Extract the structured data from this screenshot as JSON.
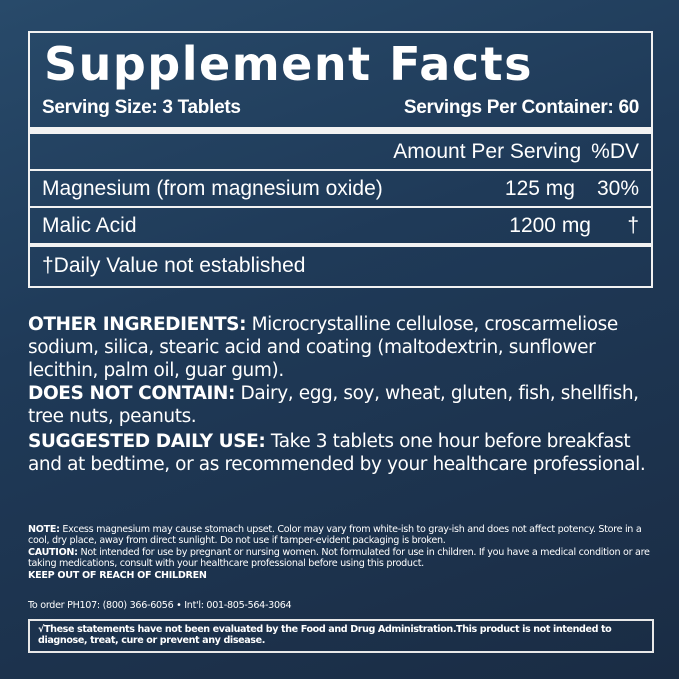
{
  "facts": {
    "title": "Supplement Facts",
    "serving_size": "Serving Size: 3 Tablets",
    "servings_per_container": "Servings Per Container: 60",
    "amount_header": "Amount Per Serving",
    "dv_header": "%DV",
    "rows": [
      {
        "name": "Magnesium (from magnesium oxide)",
        "amount": "125 mg",
        "dv": "30%"
      },
      {
        "name": "Malic Acid",
        "amount": "1200 mg",
        "dv": "†"
      }
    ],
    "footnote": "†Daily Value not established"
  },
  "other_ingredients": {
    "label": "OTHER INGREDIENTS:",
    "text": " Microcrystalline cellulose, croscarmeliose sodium, silica, stearic acid and coating (maltodextrin, sunflower lecithin, palm oil, guar gum)."
  },
  "does_not_contain": {
    "label": "DOES NOT CONTAIN:",
    "text": " Dairy, egg, soy, wheat, gluten, fish, shellfish, tree nuts, peanuts."
  },
  "suggested_use": {
    "label": "SUGGESTED DAILY USE:",
    "text": " Take 3 tablets one hour before breakfast and at bedtime, or as recommended by your healthcare professional."
  },
  "note": {
    "label": "NOTE:",
    "text": " Excess magnesium may cause stomach upset. Color may vary from white-ish to gray-ish and does not affect potency. Store in a cool, dry place, away from direct sunlight. Do not use if tamper-evident packaging is broken."
  },
  "caution": {
    "label": "CAUTION:",
    "text": " Not intended for use by pregnant or nursing women. Not formulated for use in children. If you have a medical condition or are taking medications, consult with your healthcare professional before using this product."
  },
  "keep_out": "KEEP OUT OF REACH OF CHILDREN",
  "order": "To order PH107: (800) 366-6056 • Int'l: 001-805-564-3064",
  "fda": "√These statements have not been evaluated by the Food and Drug Administration.This product is not intended to diagnose, treat, cure or prevent any disease."
}
